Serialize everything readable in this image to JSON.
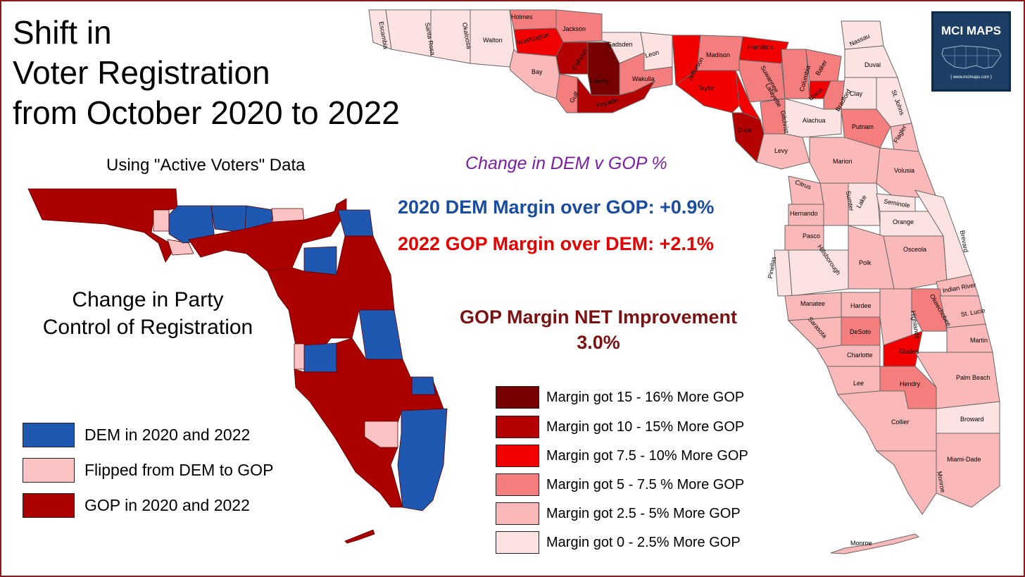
{
  "title_lines": [
    "Shift in",
    "Voter Registration",
    "from October 2020 to 2022"
  ],
  "subtitle": "Using \"Active Voters\" Data",
  "change_label": "Change in DEM v GOP %",
  "dem_margin_2020": "2020 DEM Margin over GOP:  +0.9%",
  "gop_margin_2022": "2022 GOP Margin over DEM:  +2.1%",
  "net_title": "GOP Margin NET Improvement",
  "net_value": "3.0%",
  "small_map_title_lines": [
    "Change in Party",
    "Control of Registration"
  ],
  "party_legend": [
    {
      "label": "DEM in 2020 and 2022",
      "color": "#1f58b0"
    },
    {
      "label": "Flipped from DEM to GOP",
      "color": "#fbc3c3"
    },
    {
      "label": "GOP in 2020 and 2022",
      "color": "#ab0000"
    }
  ],
  "shift_legend": [
    {
      "label": "Margin got 15 - 16% More GOP",
      "color": "#760000"
    },
    {
      "label": "Margin got 10 - 15% More GOP",
      "color": "#b40000"
    },
    {
      "label": "Margin got 7.5 - 10% More GOP",
      "color": "#f20000"
    },
    {
      "label": "Margin got 5 - 7.5 % More GOP",
      "color": "#f47e7e"
    },
    {
      "label": "Margin got 2.5 - 5% More GOP",
      "color": "#fbb8b8"
    },
    {
      "label": "Margin got 0 - 2.5% More GOP",
      "color": "#fde2e2"
    }
  ],
  "logo": {
    "title": "MCI MAPS",
    "url": "{ www.mcimaps.com }"
  },
  "counties": [
    "Escambia",
    "Santa Rosa",
    "Okaloosa",
    "Walton",
    "Holmes",
    "Jackson",
    "Washington",
    "Bay",
    "Calhoun",
    "Gulf",
    "Liberty",
    "Gadsden",
    "Leon",
    "Wakulla",
    "Franklin",
    "Jefferson",
    "Madison",
    "Hamilton",
    "Nassau",
    "Duval",
    "Taylor",
    "Suwannee",
    "Lafayette",
    "Columbia",
    "Baker",
    "Union",
    "Bradford",
    "Clay",
    "St. Johns",
    "Gilchrist",
    "Dixie",
    "Alachua",
    "Putnam",
    "Flagler",
    "Levy",
    "Marion",
    "Volusia",
    "Citrus",
    "Sumter",
    "Lake",
    "Seminole",
    "Hernando",
    "Orange",
    "Brevard",
    "Pasco",
    "Osceola",
    "Pinellas",
    "Hillsborough",
    "Polk",
    "Indian River",
    "Manatee",
    "Hardee",
    "Highlands",
    "Okeechobee",
    "St. Lucie",
    "Sarasota",
    "DeSoto",
    "Martin",
    "Charlotte",
    "Glades",
    "Lee",
    "Hendry",
    "Palm Beach",
    "Collier",
    "Broward",
    "Miami-Dade",
    "Monroe",
    "Monroe"
  ]
}
